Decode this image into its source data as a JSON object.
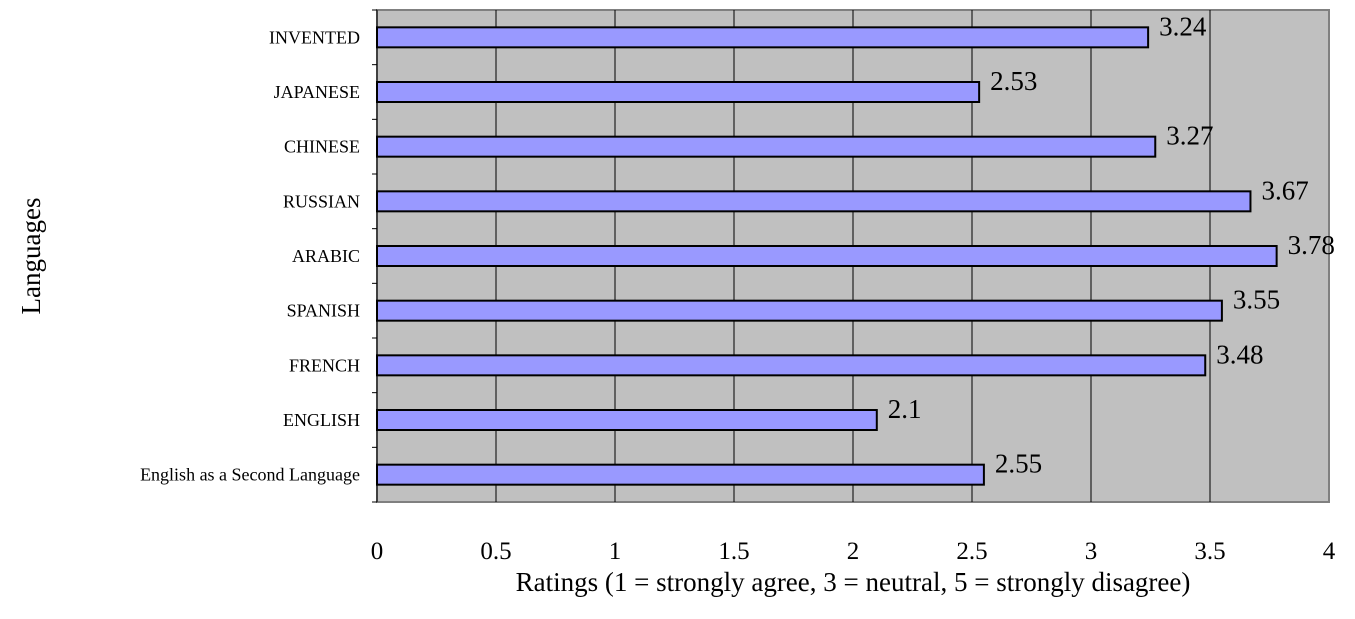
{
  "chart_data": {
    "type": "bar",
    "orientation": "horizontal",
    "categories": [
      "INVENTED",
      "JAPANESE",
      "CHINESE",
      "RUSSIAN",
      "ARABIC",
      "SPANISH",
      "FRENCH",
      "ENGLISH",
      "English as a Second Language"
    ],
    "values": [
      3.24,
      2.53,
      3.27,
      3.67,
      3.78,
      3.55,
      3.48,
      2.1,
      2.55
    ],
    "value_labels": [
      "3.24",
      "2.53",
      "3.27",
      "3.67",
      "3.78",
      "3.55",
      "3.48",
      "2.1",
      "2.55"
    ],
    "xlabel": "Ratings (1 = strongly agree, 3 = neutral, 5 = strongly disagree)",
    "ylabel": "Languages",
    "xlim": [
      0,
      4
    ],
    "x_ticks": [
      "0",
      "0.5",
      "1",
      "1.5",
      "2",
      "2.5",
      "3",
      "3.5",
      "4"
    ],
    "grid": "vertical",
    "legend": "none",
    "colors": {
      "bar_fill": "#9999FF",
      "bar_stroke": "#000000",
      "plot_background": "#C0C0C0",
      "gridline": "#000000"
    }
  }
}
